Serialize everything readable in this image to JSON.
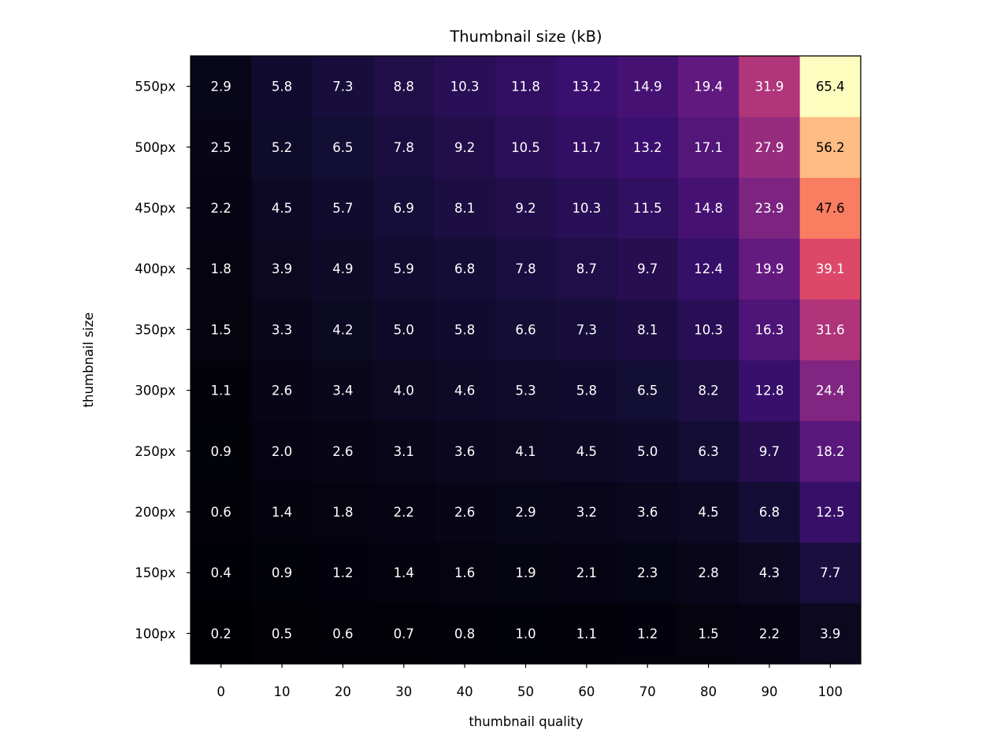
{
  "chart_data": {
    "type": "heatmap",
    "title": "Thumbnail size (kB)",
    "xlabel": "thumbnail quality",
    "ylabel": "thumbnail size",
    "colormap": "magma",
    "x_categories": [
      "0",
      "10",
      "20",
      "30",
      "40",
      "50",
      "60",
      "70",
      "80",
      "90",
      "100"
    ],
    "y_categories": [
      "100px",
      "150px",
      "200px",
      "250px",
      "300px",
      "350px",
      "400px",
      "450px",
      "500px",
      "550px"
    ],
    "y_order": "bottom-to-top",
    "values": [
      [
        0.2,
        0.5,
        0.6,
        0.7,
        0.8,
        1.0,
        1.1,
        1.2,
        1.5,
        2.2,
        3.9
      ],
      [
        0.4,
        0.9,
        1.2,
        1.4,
        1.6,
        1.9,
        2.1,
        2.3,
        2.8,
        4.3,
        7.7
      ],
      [
        0.6,
        1.4,
        1.8,
        2.2,
        2.6,
        2.9,
        3.2,
        3.6,
        4.5,
        6.8,
        12.5
      ],
      [
        0.9,
        2.0,
        2.6,
        3.1,
        3.6,
        4.1,
        4.5,
        5.0,
        6.3,
        9.7,
        18.2
      ],
      [
        1.1,
        2.6,
        3.4,
        4.0,
        4.6,
        5.3,
        5.8,
        6.5,
        8.2,
        12.8,
        24.4
      ],
      [
        1.5,
        3.3,
        4.2,
        5.0,
        5.8,
        6.6,
        7.3,
        8.1,
        10.3,
        16.3,
        31.6
      ],
      [
        1.8,
        3.9,
        4.9,
        5.9,
        6.8,
        7.8,
        8.7,
        9.7,
        12.4,
        19.9,
        39.1
      ],
      [
        2.2,
        4.5,
        5.7,
        6.9,
        8.1,
        9.2,
        10.3,
        11.5,
        14.8,
        23.9,
        47.6
      ],
      [
        2.5,
        5.2,
        6.5,
        7.8,
        9.2,
        10.5,
        11.7,
        13.2,
        17.1,
        27.9,
        56.2
      ],
      [
        2.9,
        5.8,
        7.3,
        8.8,
        10.3,
        11.8,
        13.2,
        14.9,
        19.4,
        31.9,
        65.4
      ]
    ],
    "value_range": [
      0.2,
      65.4
    ],
    "grid": false,
    "legend": "none"
  }
}
